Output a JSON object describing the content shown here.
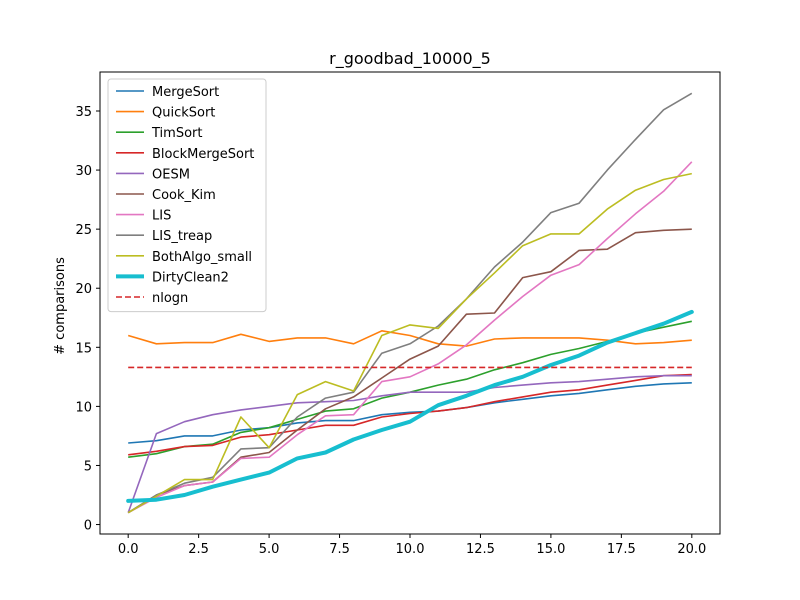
{
  "chart_data": {
    "type": "line",
    "title": "r_goodbad_10000_5",
    "xlabel": "",
    "ylabel": "# comparisons",
    "xlim": [
      -1.0,
      21.0
    ],
    "ylim": [
      -0.8,
      38.3
    ],
    "xticks": [
      0,
      2.5,
      5,
      7.5,
      10,
      12.5,
      15,
      17.5,
      20
    ],
    "xtick_labels": [
      "0.0",
      "2.5",
      "5.0",
      "7.5",
      "10.0",
      "12.5",
      "15.0",
      "17.5",
      "20.0"
    ],
    "yticks": [
      0,
      5,
      10,
      15,
      20,
      25,
      30,
      35
    ],
    "ytick_labels": [
      "0",
      "5",
      "10",
      "15",
      "20",
      "25",
      "30",
      "35"
    ],
    "grid": false,
    "legend_position": "top-left",
    "x": [
      0,
      1,
      2,
      3,
      4,
      5,
      6,
      7,
      8,
      9,
      10,
      11,
      12,
      13,
      14,
      15,
      16,
      17,
      18,
      19,
      20
    ],
    "series": [
      {
        "name": "MergeSort",
        "color": "#1f77b4",
        "values": [
          6.9,
          7.1,
          7.5,
          7.5,
          8.0,
          8.2,
          8.6,
          8.8,
          8.8,
          9.3,
          9.5,
          9.6,
          9.9,
          10.3,
          10.6,
          10.9,
          11.1,
          11.4,
          11.7,
          11.9,
          12.0
        ]
      },
      {
        "name": "QuickSort",
        "color": "#ff7f0e",
        "values": [
          16.0,
          15.3,
          15.4,
          15.4,
          16.1,
          15.5,
          15.8,
          15.8,
          15.3,
          16.4,
          16.0,
          15.3,
          15.1,
          15.7,
          15.8,
          15.8,
          15.8,
          15.6,
          15.3,
          15.4,
          15.6
        ]
      },
      {
        "name": "TimSort",
        "color": "#2ca02c",
        "values": [
          5.7,
          6.0,
          6.6,
          6.8,
          7.8,
          8.2,
          8.9,
          9.6,
          9.8,
          10.7,
          11.2,
          11.8,
          12.3,
          13.1,
          13.7,
          14.4,
          14.9,
          15.5,
          16.2,
          16.7,
          17.2
        ]
      },
      {
        "name": "BlockMergeSort",
        "color": "#d62728",
        "values": [
          5.9,
          6.2,
          6.6,
          6.7,
          7.4,
          7.6,
          8.0,
          8.4,
          8.4,
          9.1,
          9.4,
          9.6,
          9.9,
          10.4,
          10.8,
          11.2,
          11.4,
          11.8,
          12.2,
          12.6,
          12.7
        ]
      },
      {
        "name": "OESM",
        "color": "#9467bd",
        "values": [
          1.0,
          7.7,
          8.7,
          9.3,
          9.7,
          10.0,
          10.3,
          10.4,
          10.5,
          10.9,
          11.2,
          11.2,
          11.2,
          11.6,
          11.8,
          12.0,
          12.1,
          12.3,
          12.5,
          12.6,
          12.6
        ]
      },
      {
        "name": "Cook_Kim",
        "color": "#8c564b",
        "values": [
          1.0,
          2.5,
          3.3,
          3.6,
          5.7,
          6.1,
          8.0,
          9.8,
          10.8,
          12.4,
          14.0,
          15.1,
          17.8,
          17.9,
          20.9,
          21.4,
          23.2,
          23.3,
          24.7,
          24.9,
          25.0
        ]
      },
      {
        "name": "LIS",
        "color": "#e377c2",
        "values": [
          1.0,
          2.3,
          3.3,
          3.6,
          5.6,
          5.7,
          7.6,
          9.2,
          9.3,
          12.1,
          12.5,
          13.6,
          15.2,
          17.3,
          19.3,
          21.1,
          22.0,
          24.2,
          26.3,
          28.2,
          30.7
        ]
      },
      {
        "name": "LIS_treap",
        "color": "#7f7f7f",
        "values": [
          1.0,
          2.5,
          3.5,
          4.0,
          6.4,
          6.5,
          9.1,
          10.7,
          11.2,
          14.5,
          15.3,
          16.8,
          19.1,
          21.8,
          23.9,
          26.4,
          27.2,
          30.0,
          32.6,
          35.1,
          36.5
        ]
      },
      {
        "name": "BothAlgo_small",
        "color": "#bcbd22",
        "values": [
          1.0,
          2.4,
          3.8,
          3.8,
          9.1,
          6.5,
          11.0,
          12.1,
          11.3,
          16.0,
          16.9,
          16.6,
          19.1,
          21.3,
          23.6,
          24.6,
          24.6,
          26.7,
          28.3,
          29.2,
          29.7
        ]
      },
      {
        "name": "DirtyClean2",
        "color": "#17becf",
        "values": [
          2.0,
          2.1,
          2.5,
          3.2,
          3.8,
          4.4,
          5.6,
          6.1,
          7.2,
          8.0,
          8.7,
          10.1,
          10.9,
          11.8,
          12.5,
          13.5,
          14.3,
          15.4,
          16.2,
          17.0,
          18.0
        ]
      },
      {
        "name": "nlogn",
        "color": "#d62728",
        "values": [
          13.3,
          13.3,
          13.3,
          13.3,
          13.3,
          13.3,
          13.3,
          13.3,
          13.3,
          13.3,
          13.3,
          13.3,
          13.3,
          13.3,
          13.3,
          13.3,
          13.3,
          13.3,
          13.3,
          13.3,
          13.3
        ]
      }
    ]
  }
}
